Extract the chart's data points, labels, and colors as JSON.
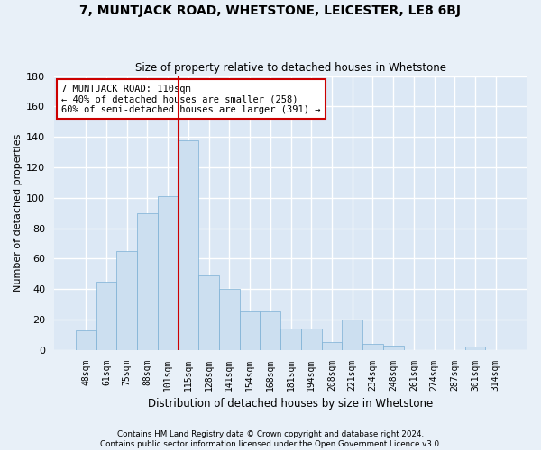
{
  "title": "7, MUNTJACK ROAD, WHETSTONE, LEICESTER, LE8 6BJ",
  "subtitle": "Size of property relative to detached houses in Whetstone",
  "xlabel": "Distribution of detached houses by size in Whetstone",
  "ylabel": "Number of detached properties",
  "bar_color": "#ccdff0",
  "bar_edge_color": "#7aafd4",
  "categories": [
    "48sqm",
    "61sqm",
    "75sqm",
    "88sqm",
    "101sqm",
    "115sqm",
    "128sqm",
    "141sqm",
    "154sqm",
    "168sqm",
    "181sqm",
    "194sqm",
    "208sqm",
    "221sqm",
    "234sqm",
    "248sqm",
    "261sqm",
    "274sqm",
    "287sqm",
    "301sqm",
    "314sqm"
  ],
  "values": [
    13,
    45,
    65,
    90,
    101,
    138,
    49,
    40,
    25,
    25,
    14,
    14,
    5,
    20,
    4,
    3,
    0,
    0,
    0,
    2,
    0
  ],
  "ylim": [
    0,
    180
  ],
  "yticks": [
    0,
    20,
    40,
    60,
    80,
    100,
    120,
    140,
    160,
    180
  ],
  "red_line_x": 4.5,
  "annotation_text": "7 MUNTJACK ROAD: 110sqm\n← 40% of detached houses are smaller (258)\n60% of semi-detached houses are larger (391) →",
  "annotation_box_color": "#ffffff",
  "annotation_box_edge": "#cc0000",
  "footer1": "Contains HM Land Registry data © Crown copyright and database right 2024.",
  "footer2": "Contains public sector information licensed under the Open Government Licence v3.0.",
  "background_color": "#dce8f5",
  "fig_background_color": "#e8f0f8",
  "grid_color": "#ffffff"
}
